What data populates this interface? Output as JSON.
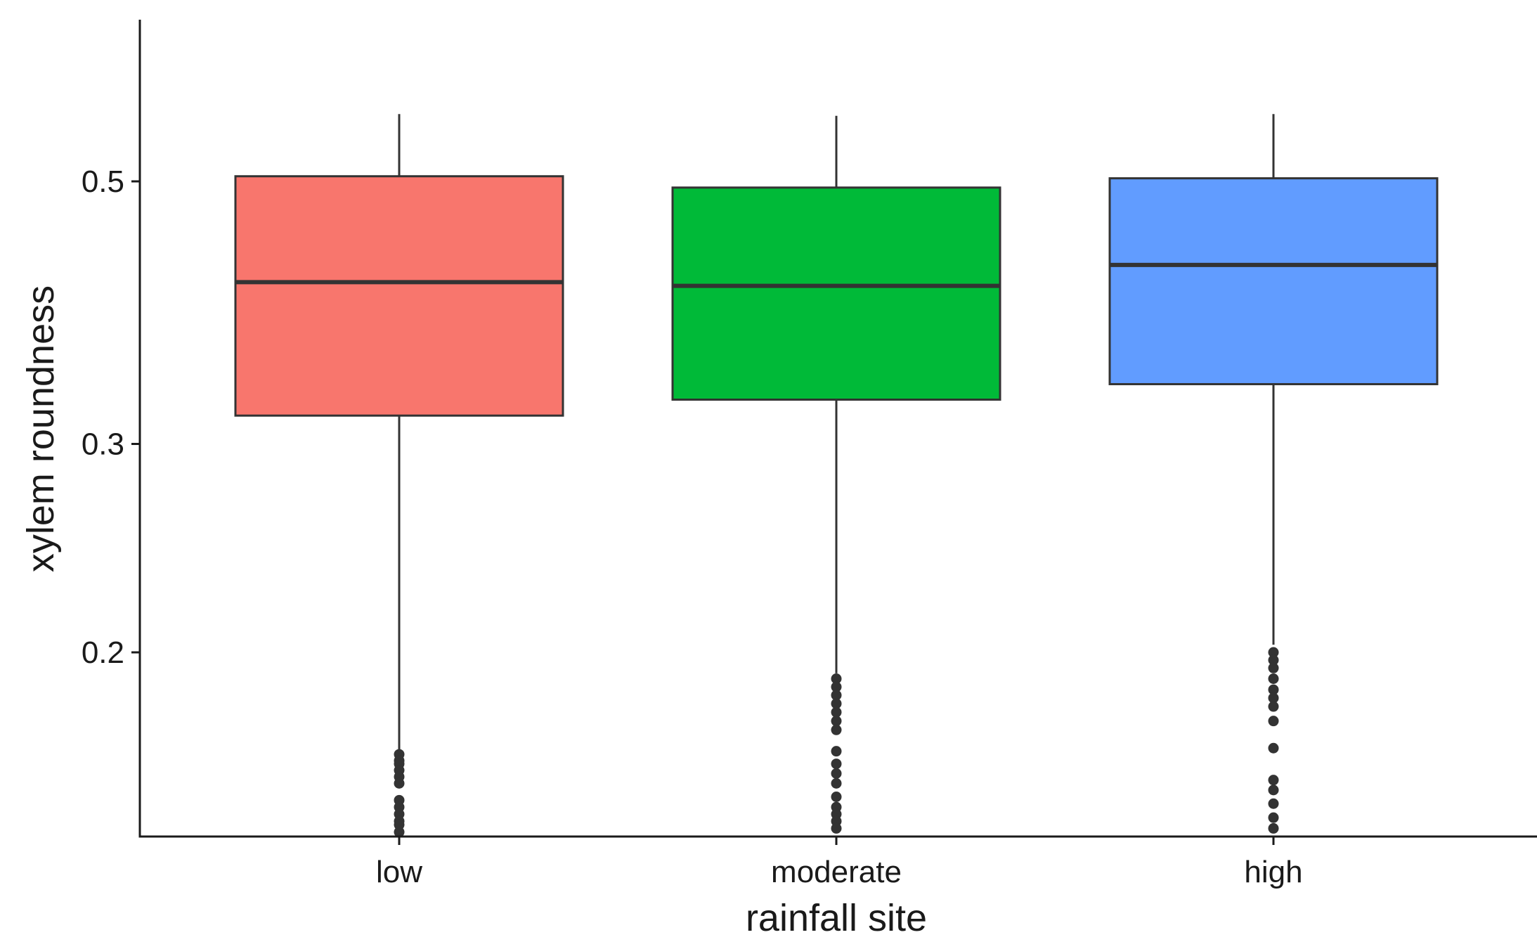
{
  "chart_data": {
    "type": "boxplot",
    "title": "",
    "xlabel": "rainfall site",
    "ylabel": "xylem roundness",
    "y_scale": "log",
    "ylim": [
      0.135,
      0.57
    ],
    "y_ticks": [
      0.2,
      0.3,
      0.5
    ],
    "y_tick_labels": [
      "0.2",
      "0.3",
      "0.5"
    ],
    "grid": false,
    "legend": "none",
    "categories": [
      "low",
      "moderate",
      "high"
    ],
    "boxes": [
      {
        "category": "low",
        "color": "#F8766D",
        "whisker_low": 0.165,
        "q1": 0.317,
        "median": 0.411,
        "q3": 0.505,
        "whisker_high": 0.57,
        "outliers": [
          0.164,
          0.162,
          0.161,
          0.159,
          0.157,
          0.155,
          0.15,
          0.148,
          0.146,
          0.144,
          0.143,
          0.141
        ]
      },
      {
        "category": "moderate",
        "color": "#00BA38",
        "whisker_low": 0.192,
        "q1": 0.327,
        "median": 0.408,
        "q3": 0.494,
        "whisker_high": 0.568,
        "outliers": [
          0.19,
          0.187,
          0.184,
          0.181,
          0.178,
          0.175,
          0.172,
          0.165,
          0.161,
          0.158,
          0.155,
          0.151,
          0.148,
          0.146,
          0.144,
          0.142
        ]
      },
      {
        "category": "high",
        "color": "#619CFF",
        "whisker_low": 0.203,
        "q1": 0.337,
        "median": 0.425,
        "q3": 0.503,
        "whisker_high": 0.57,
        "outliers": [
          0.2,
          0.197,
          0.194,
          0.19,
          0.186,
          0.183,
          0.18,
          0.175,
          0.166,
          0.156,
          0.153,
          0.149,
          0.145,
          0.142
        ]
      }
    ]
  }
}
